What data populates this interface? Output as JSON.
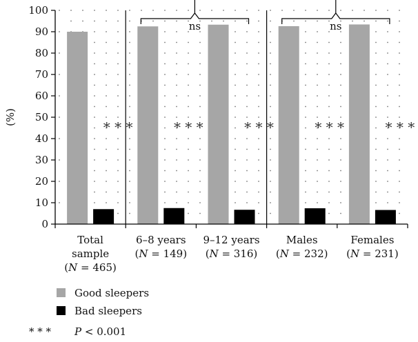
{
  "chart_data": {
    "type": "bar",
    "ylabel": "(%)",
    "ylim": [
      0,
      100
    ],
    "yticks": [
      0,
      10,
      20,
      30,
      40,
      50,
      60,
      70,
      80,
      90,
      100
    ],
    "grid": "dotted",
    "categories": [
      {
        "lines": [
          "Total",
          "sample",
          "(N = 465)"
        ]
      },
      {
        "lines": [
          "6–8 years",
          "(N = 149)"
        ]
      },
      {
        "lines": [
          "9–12 years",
          "(N = 316)"
        ]
      },
      {
        "lines": [
          "Males",
          "(N = 232)"
        ]
      },
      {
        "lines": [
          "Females",
          "(N = 231)"
        ]
      }
    ],
    "series": [
      {
        "name": "Good sleepers",
        "color": "#a6a6a6",
        "values": [
          90,
          92.5,
          93.3,
          92.6,
          93.4
        ]
      },
      {
        "name": "Bad sleepers",
        "color": "#000000",
        "values": [
          7,
          7.5,
          6.7,
          7.4,
          6.6
        ]
      }
    ],
    "significance_markers": [
      "* * *",
      "* * *",
      "* * *",
      "* * *",
      "* * *"
    ],
    "comparison_brackets": [
      {
        "label": "ns",
        "from_category": 1,
        "to_category": 2
      },
      {
        "label": "ns",
        "from_category": 3,
        "to_category": 4
      }
    ],
    "group_separators_after": [
      0,
      2
    ],
    "legend_placement": "bottom-left",
    "footnote": {
      "symbol": "* * *",
      "text": "P < 0.001"
    }
  }
}
